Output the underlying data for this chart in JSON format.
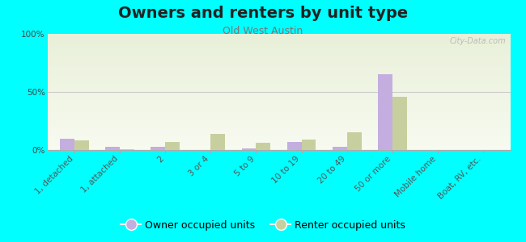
{
  "title": "Owners and renters by unit type",
  "subtitle": "Old West Austin",
  "categories": [
    "1, detached",
    "1, attached",
    "2",
    "3 or 4",
    "5 to 9",
    "10 to 19",
    "20 to 49",
    "50 or more",
    "Mobile home",
    "Boat, RV, etc."
  ],
  "owner_values": [
    10,
    2.5,
    2.5,
    0,
    1.5,
    7,
    3,
    65,
    0,
    0
  ],
  "renter_values": [
    8,
    0.5,
    7,
    14,
    6,
    9,
    15,
    46,
    0,
    0
  ],
  "owner_color": "#c4aee0",
  "renter_color": "#c8cf9e",
  "background_color": "#00ffff",
  "ylabel_ticks": [
    "0%",
    "50%",
    "100%"
  ],
  "ytick_vals": [
    0,
    50,
    100
  ],
  "ylim": [
    0,
    100
  ],
  "bar_width": 0.32,
  "title_fontsize": 14,
  "subtitle_fontsize": 9,
  "tick_fontsize": 7.5,
  "legend_fontsize": 9,
  "watermark": "City-Data.com"
}
